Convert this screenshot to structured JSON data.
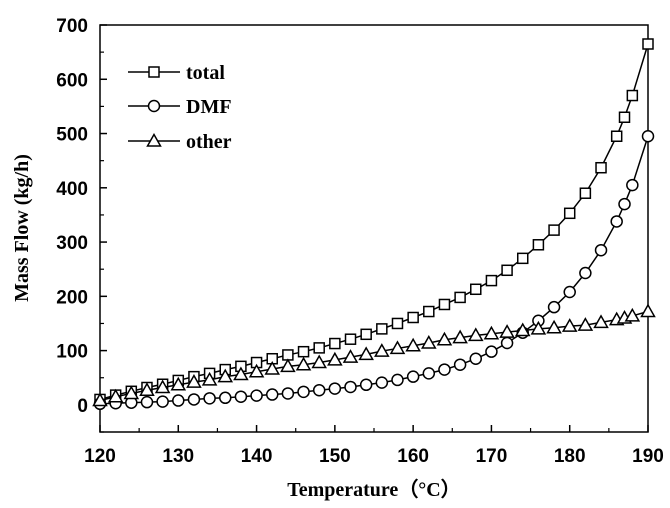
{
  "chart_data": {
    "type": "line",
    "xlabel": "Temperature（°C）",
    "ylabel": "Mass Flow (kg/h)",
    "xlim": [
      120,
      190
    ],
    "ylim": [
      -50,
      700
    ],
    "x_ticks": [
      120,
      130,
      140,
      150,
      160,
      170,
      180,
      190
    ],
    "y_ticks": [
      0,
      100,
      200,
      300,
      400,
      500,
      600,
      700
    ],
    "grid": false,
    "legend_position": "top-left",
    "x": [
      120,
      122,
      124,
      126,
      128,
      130,
      132,
      134,
      136,
      138,
      140,
      142,
      144,
      146,
      148,
      150,
      152,
      154,
      156,
      158,
      160,
      162,
      164,
      166,
      168,
      170,
      172,
      174,
      176,
      178,
      180,
      182,
      184,
      186,
      187,
      188,
      190
    ],
    "series": [
      {
        "name": "total",
        "marker": "square",
        "values": [
          10,
          18,
          25,
          32,
          38,
          45,
          52,
          58,
          65,
          71,
          78,
          85,
          92,
          98,
          105,
          113,
          121,
          130,
          140,
          150,
          161,
          172,
          185,
          198,
          213,
          229,
          248,
          270,
          295,
          322,
          353,
          390,
          437,
          495,
          530,
          570,
          665
        ]
      },
      {
        "name": "DMF",
        "marker": "circle",
        "values": [
          2,
          3,
          4,
          5,
          6,
          8,
          10,
          12,
          13,
          15,
          17,
          19,
          21,
          24,
          27,
          30,
          33,
          37,
          41,
          46,
          52,
          58,
          65,
          74,
          85,
          98,
          114,
          133,
          155,
          180,
          208,
          243,
          285,
          338,
          370,
          405,
          495
        ]
      },
      {
        "name": "other",
        "marker": "triangle",
        "values": [
          8,
          15,
          21,
          27,
          32,
          37,
          42,
          46,
          52,
          56,
          61,
          66,
          71,
          74,
          78,
          83,
          88,
          93,
          99,
          104,
          109,
          114,
          120,
          124,
          128,
          131,
          134,
          137,
          140,
          142,
          145,
          147,
          152,
          157,
          160,
          164,
          172
        ]
      }
    ]
  }
}
